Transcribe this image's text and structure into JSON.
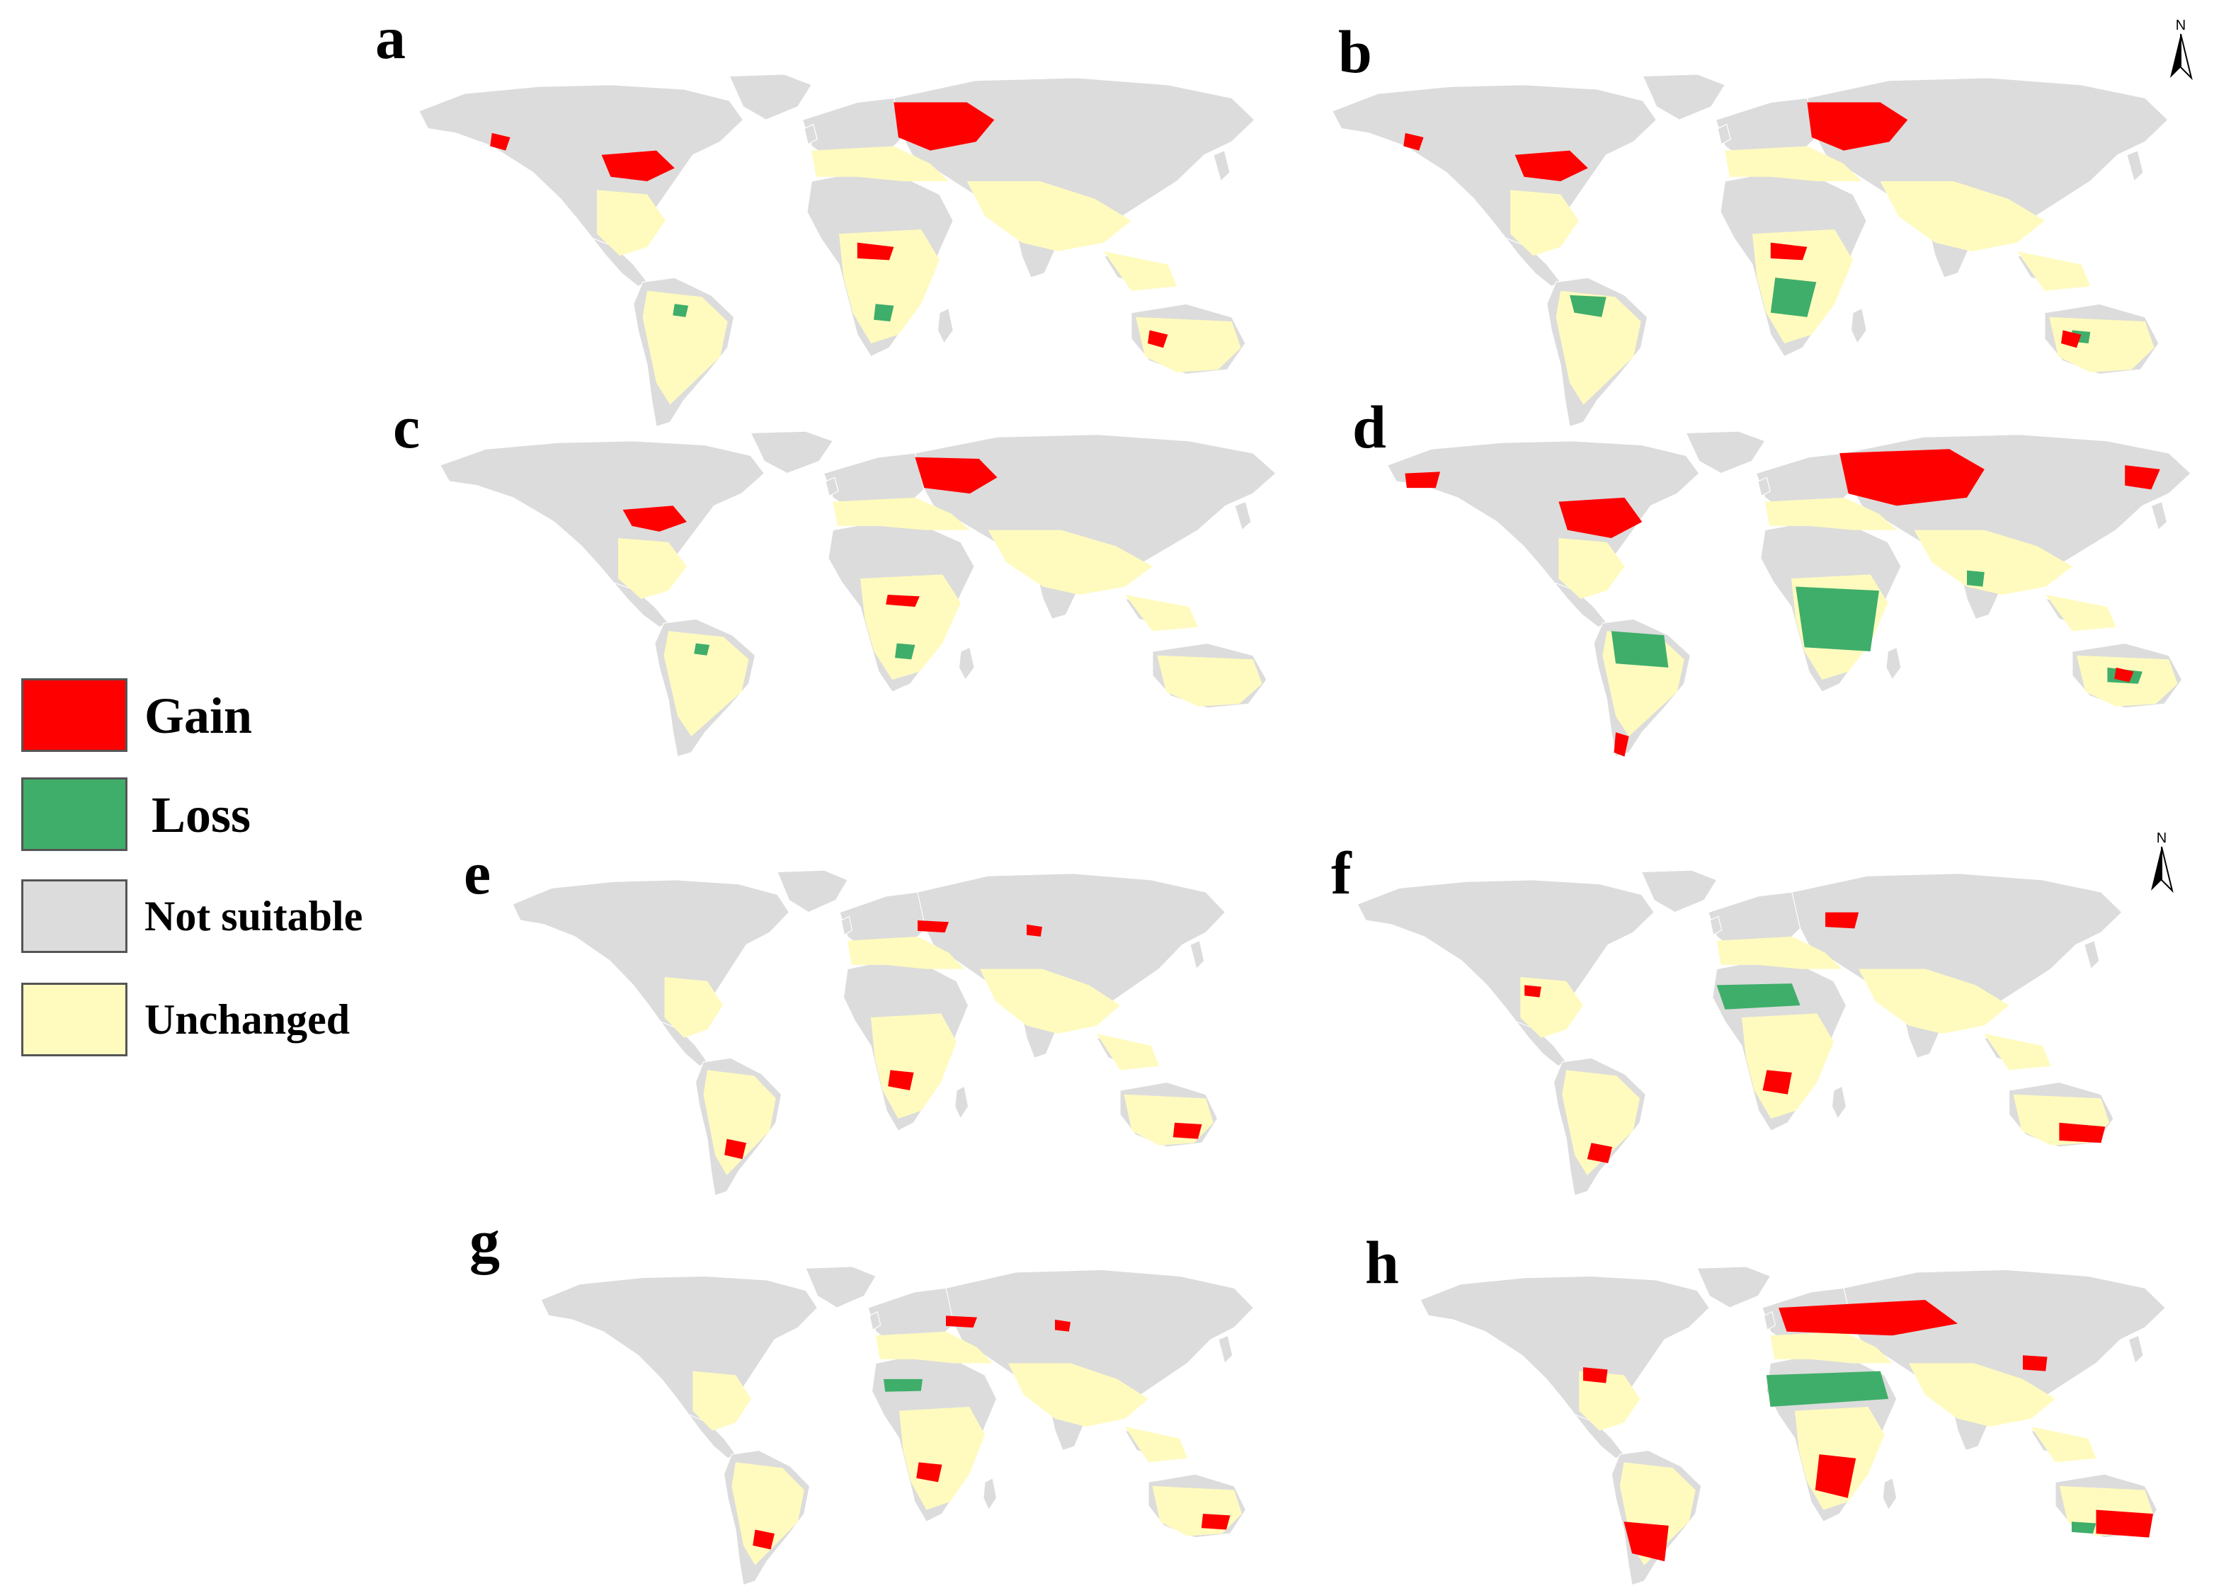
{
  "figure": {
    "panels": [
      {
        "id": "a",
        "label": "a",
        "north_arrow": false,
        "gain": "high_north",
        "loss": "low"
      },
      {
        "id": "b",
        "label": "b",
        "north_arrow": true,
        "gain": "high_north",
        "loss": "medium"
      },
      {
        "id": "c",
        "label": "c",
        "north_arrow": false,
        "gain": "medium_north",
        "loss": "low"
      },
      {
        "id": "d",
        "label": "d",
        "north_arrow": false,
        "gain": "very_high_north",
        "loss": "high"
      },
      {
        "id": "e",
        "label": "e",
        "north_arrow": false,
        "gain": "low_south",
        "loss": "none"
      },
      {
        "id": "f",
        "label": "f",
        "north_arrow": true,
        "gain": "medium_south",
        "loss": "sahel"
      },
      {
        "id": "g",
        "label": "g",
        "north_arrow": false,
        "gain": "low_south",
        "loss": "low_sahel"
      },
      {
        "id": "h",
        "label": "h",
        "north_arrow": false,
        "gain": "high_south",
        "loss": "sahel_strong"
      }
    ],
    "north_label": "N"
  },
  "legend": {
    "items": [
      {
        "label": "Gain",
        "color": "#ff0000"
      },
      {
        "label": "Loss",
        "color": "#3fae6a"
      },
      {
        "label": "Not suitable",
        "color": "#dcdcdc"
      },
      {
        "label": "Unchanged",
        "color": "#fffbbf"
      }
    ]
  },
  "colors": {
    "not_suitable": "#dcdcdc",
    "unchanged": "#fffbbf",
    "gain": "#ff0000",
    "loss": "#3fae6a",
    "border": "#ffffff"
  }
}
